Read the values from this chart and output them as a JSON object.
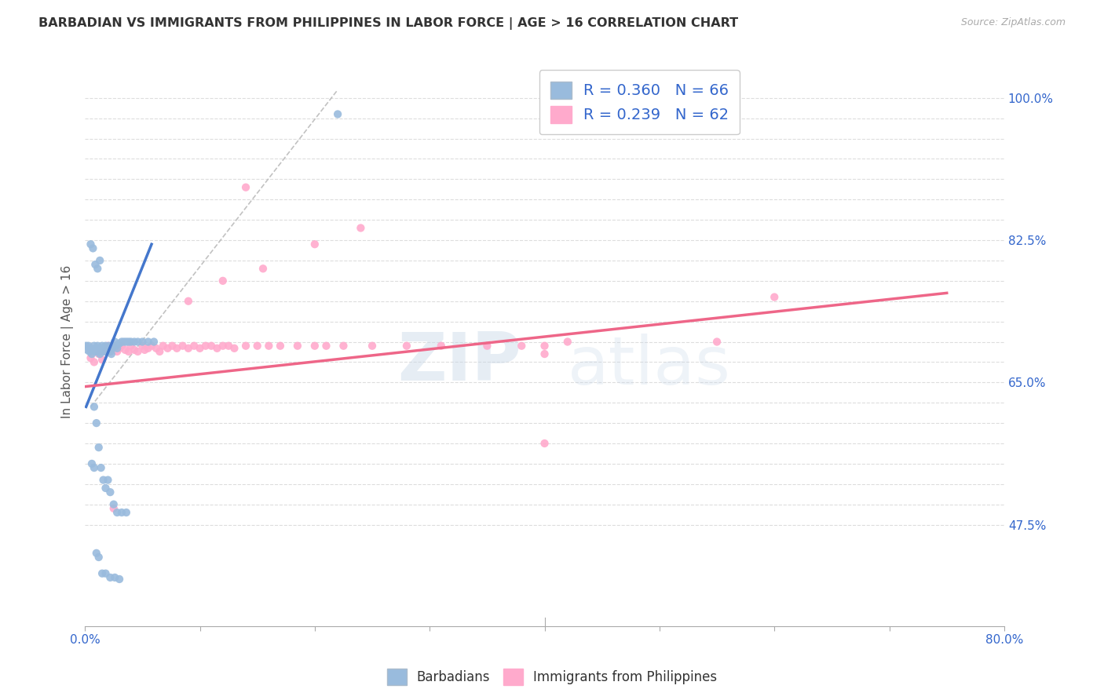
{
  "title": "BARBADIAN VS IMMIGRANTS FROM PHILIPPINES IN LABOR FORCE | AGE > 16 CORRELATION CHART",
  "source": "Source: ZipAtlas.com",
  "ylabel": "In Labor Force | Age > 16",
  "xlim": [
    0.0,
    0.8
  ],
  "ylim": [
    0.35,
    1.05
  ],
  "blue_color": "#99BBDD",
  "pink_color": "#FFAACC",
  "trendline_blue_color": "#4477CC",
  "trendline_pink_color": "#EE6688",
  "diagonal_color": "#BBBBBB",
  "background_color": "#FFFFFF",
  "grid_color": "#DDDDDD",
  "barbadian_x": [
    0.001,
    0.002,
    0.003,
    0.004,
    0.005,
    0.006,
    0.007,
    0.008,
    0.009,
    0.01,
    0.011,
    0.012,
    0.013,
    0.014,
    0.015,
    0.016,
    0.017,
    0.018,
    0.019,
    0.02,
    0.021,
    0.022,
    0.023,
    0.024,
    0.025,
    0.026,
    0.027,
    0.028,
    0.03,
    0.032,
    0.034,
    0.036,
    0.038,
    0.04,
    0.043,
    0.046,
    0.05,
    0.055,
    0.06,
    0.008,
    0.01,
    0.012,
    0.014,
    0.016,
    0.018,
    0.02,
    0.022,
    0.025,
    0.028,
    0.032,
    0.036,
    0.005,
    0.007,
    0.009,
    0.011,
    0.013,
    0.22,
    0.006,
    0.008,
    0.01,
    0.012,
    0.015,
    0.018,
    0.022,
    0.026,
    0.03
  ],
  "barbadian_y": [
    0.695,
    0.69,
    0.695,
    0.688,
    0.692,
    0.685,
    0.69,
    0.695,
    0.688,
    0.692,
    0.695,
    0.688,
    0.685,
    0.692,
    0.695,
    0.688,
    0.692,
    0.695,
    0.688,
    0.692,
    0.695,
    0.688,
    0.685,
    0.692,
    0.695,
    0.7,
    0.695,
    0.692,
    0.698,
    0.7,
    0.7,
    0.7,
    0.7,
    0.7,
    0.7,
    0.7,
    0.7,
    0.7,
    0.7,
    0.62,
    0.6,
    0.57,
    0.545,
    0.53,
    0.52,
    0.53,
    0.515,
    0.5,
    0.49,
    0.49,
    0.49,
    0.82,
    0.815,
    0.795,
    0.79,
    0.8,
    0.98,
    0.55,
    0.545,
    0.44,
    0.435,
    0.415,
    0.415,
    0.41,
    0.41,
    0.408
  ],
  "philippines_x": [
    0.005,
    0.008,
    0.012,
    0.015,
    0.018,
    0.02,
    0.022,
    0.025,
    0.028,
    0.03,
    0.032,
    0.035,
    0.038,
    0.04,
    0.043,
    0.046,
    0.05,
    0.052,
    0.055,
    0.058,
    0.062,
    0.065,
    0.068,
    0.072,
    0.076,
    0.08,
    0.085,
    0.09,
    0.095,
    0.1,
    0.105,
    0.11,
    0.115,
    0.12,
    0.125,
    0.13,
    0.14,
    0.15,
    0.16,
    0.17,
    0.185,
    0.2,
    0.21,
    0.225,
    0.25,
    0.28,
    0.31,
    0.35,
    0.38,
    0.4,
    0.42,
    0.55,
    0.6,
    0.025,
    0.14,
    0.4,
    0.4,
    0.09,
    0.12,
    0.155,
    0.2,
    0.24
  ],
  "philippines_y": [
    0.68,
    0.675,
    0.685,
    0.678,
    0.688,
    0.695,
    0.688,
    0.695,
    0.688,
    0.692,
    0.695,
    0.69,
    0.688,
    0.695,
    0.69,
    0.688,
    0.695,
    0.69,
    0.692,
    0.695,
    0.692,
    0.688,
    0.695,
    0.692,
    0.695,
    0.692,
    0.695,
    0.692,
    0.695,
    0.692,
    0.695,
    0.695,
    0.692,
    0.695,
    0.695,
    0.692,
    0.695,
    0.695,
    0.695,
    0.695,
    0.695,
    0.695,
    0.695,
    0.695,
    0.695,
    0.695,
    0.695,
    0.695,
    0.695,
    0.695,
    0.7,
    0.7,
    0.755,
    0.495,
    0.89,
    0.685,
    0.575,
    0.75,
    0.775,
    0.79,
    0.82,
    0.84
  ],
  "blue_trendline_x": [
    0.001,
    0.058
  ],
  "blue_trendline_y": [
    0.62,
    0.82
  ],
  "pink_trendline_x": [
    0.001,
    0.75
  ],
  "pink_trendline_y": [
    0.645,
    0.76
  ]
}
